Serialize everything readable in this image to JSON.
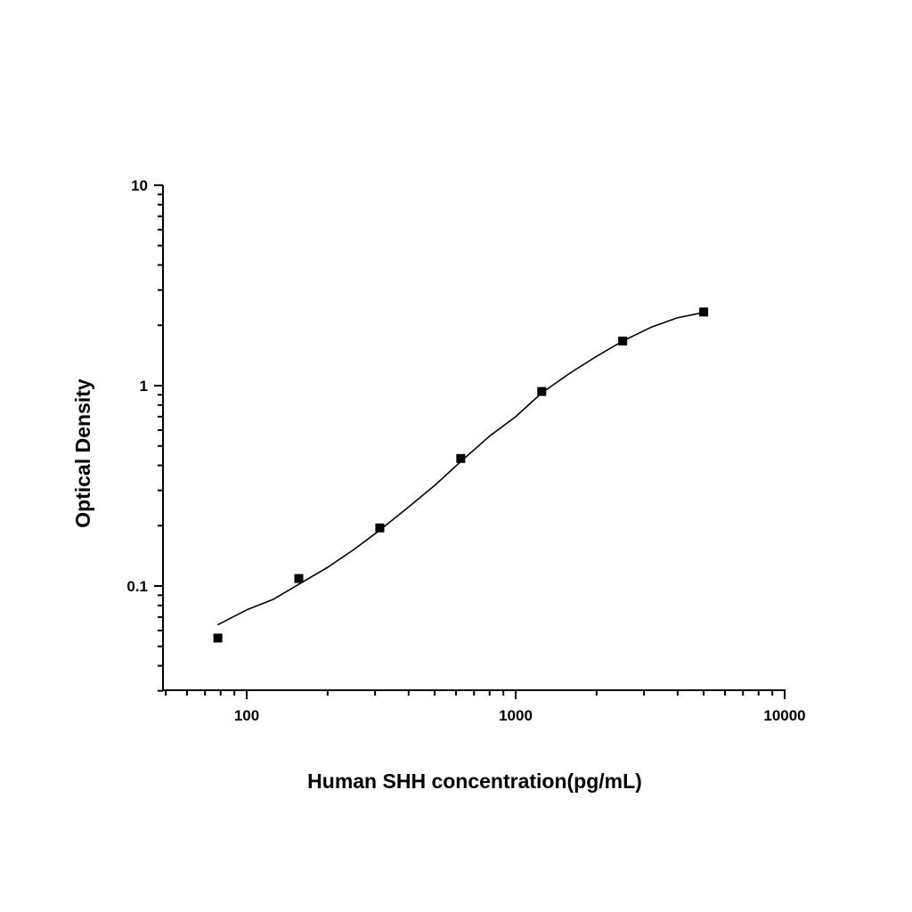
{
  "chart_data": {
    "type": "scatter",
    "title": "",
    "xlabel": "Human SHH concentration(pg/mL)",
    "ylabel": "Optical Density",
    "xscale": "log",
    "yscale": "log",
    "xlim": [
      50,
      10000
    ],
    "ylim": [
      0.03,
      10
    ],
    "x_ticks": [
      100,
      1000,
      10000
    ],
    "x_tick_labels": [
      "100",
      "1000",
      "10000"
    ],
    "y_ticks": [
      0.1,
      1,
      10
    ],
    "y_tick_labels": [
      "0.1",
      "1",
      "10"
    ],
    "grid": false,
    "marker": "square",
    "color": "#000000",
    "points": {
      "x": [
        78.125,
        156.25,
        312.5,
        625,
        1250,
        2500,
        5000
      ],
      "y": [
        0.055,
        0.109,
        0.195,
        0.433,
        0.935,
        1.67,
        2.33
      ]
    },
    "fit_curve": {
      "type": "line",
      "x": [
        78,
        100,
        126,
        160,
        200,
        250,
        312.5,
        400,
        500,
        625,
        800,
        1000,
        1250,
        1600,
        2000,
        2500,
        3200,
        4000,
        5000
      ],
      "y": [
        0.064,
        0.076,
        0.086,
        0.104,
        0.124,
        0.152,
        0.19,
        0.248,
        0.318,
        0.418,
        0.56,
        0.7,
        0.92,
        1.16,
        1.4,
        1.67,
        1.96,
        2.18,
        2.32
      ]
    }
  }
}
